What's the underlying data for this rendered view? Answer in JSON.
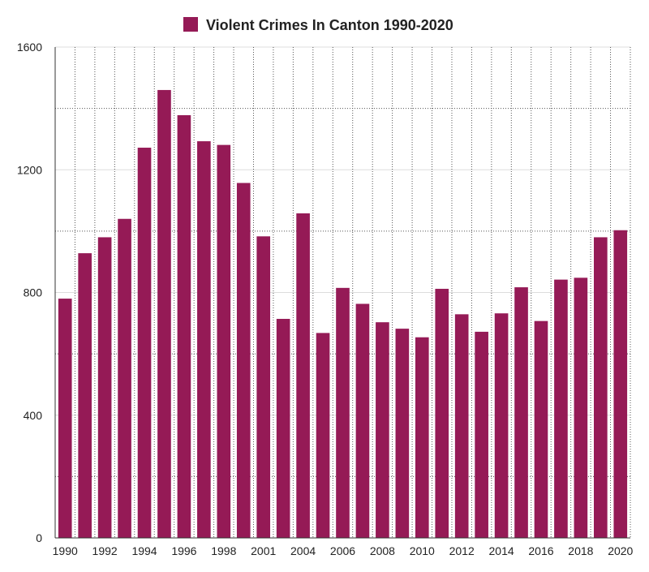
{
  "chart_data": {
    "type": "bar",
    "title": "",
    "xlabel": "",
    "ylabel": "",
    "legend": {
      "position": "top-center",
      "entries": [
        "Violent Crimes In Canton 1990-2020"
      ]
    },
    "series": [
      {
        "name": "Violent Crimes In Canton 1990-2020",
        "color": "#951a56",
        "values": [
          780,
          928,
          980,
          1040,
          1272,
          1460,
          1378,
          1293,
          1281,
          1157,
          983,
          714,
          1058,
          668,
          815,
          763,
          703,
          682,
          654,
          812,
          729,
          672,
          732,
          817,
          707,
          842,
          848,
          980,
          1003
        ]
      }
    ],
    "categories": [
      "1990",
      "1991",
      "1992",
      "1993",
      "1994",
      "1995",
      "1996",
      "1997",
      "1998",
      "1999",
      "2001",
      "2002",
      "2004",
      "2005",
      "2006",
      "2007",
      "2008",
      "2009",
      "2010",
      "2011",
      "2012",
      "2013",
      "2014",
      "2015",
      "2016",
      "2017",
      "2018",
      "2019",
      "2020"
    ],
    "x_tick_labels": [
      "1990",
      "1992",
      "1994",
      "1996",
      "1998",
      "2001",
      "2004",
      "2006",
      "2008",
      "2010",
      "2012",
      "2014",
      "2016",
      "2018",
      "2020"
    ],
    "y_ticks": [
      0,
      400,
      800,
      1200,
      1600
    ],
    "ylim": [
      0,
      1600
    ],
    "grid": true,
    "colors": {
      "bar": "#951a56",
      "grid_solid": "#dddddd",
      "grid_dotted": "#555555",
      "axis": "#333333",
      "text": "#222222"
    }
  }
}
